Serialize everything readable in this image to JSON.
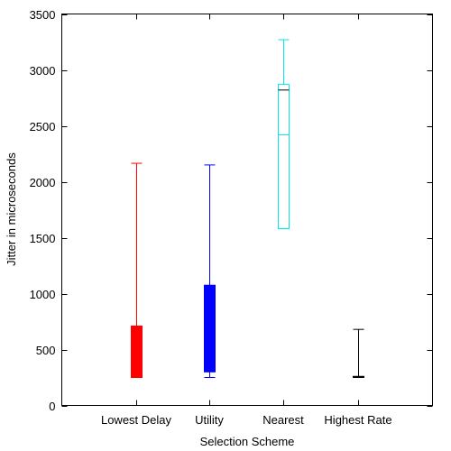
{
  "chart_data": {
    "type": "boxplot",
    "title": "",
    "xlabel": "Selection Scheme",
    "ylabel": "Jitter in microseconds",
    "ylim": [
      0,
      3500
    ],
    "yticks": [
      0,
      500,
      1000,
      1500,
      2000,
      2500,
      3000,
      3500
    ],
    "ytick_labels": [
      "0",
      "500",
      "1000",
      "1500",
      "2000",
      "2500",
      "3000",
      "3500"
    ],
    "categories": [
      "Lowest Delay",
      "Utility",
      "Nearest",
      "Highest Rate"
    ],
    "grid": false,
    "legend": "none",
    "boxes": [
      {
        "category": "Lowest Delay",
        "min": 250,
        "q1": 250,
        "median": 680,
        "q3": 710,
        "max": 2165,
        "color": "#ff0000",
        "filled": true
      },
      {
        "category": "Utility",
        "min": 250,
        "q1": 300,
        "median": 1060,
        "q3": 1075,
        "max": 2150,
        "color": "#0000ff",
        "filled": true
      },
      {
        "category": "Nearest",
        "min": 1580,
        "q1": 1580,
        "median": 2420,
        "q3": 2870,
        "max": 3270,
        "color": "#00e5ee",
        "filled": false,
        "top_line": 2820,
        "top_line_color": "#000000"
      },
      {
        "category": "Highest Rate",
        "min": 250,
        "q1": 255,
        "median": 255,
        "q3": 260,
        "max": 680,
        "color": "#000000",
        "filled": false
      }
    ]
  }
}
